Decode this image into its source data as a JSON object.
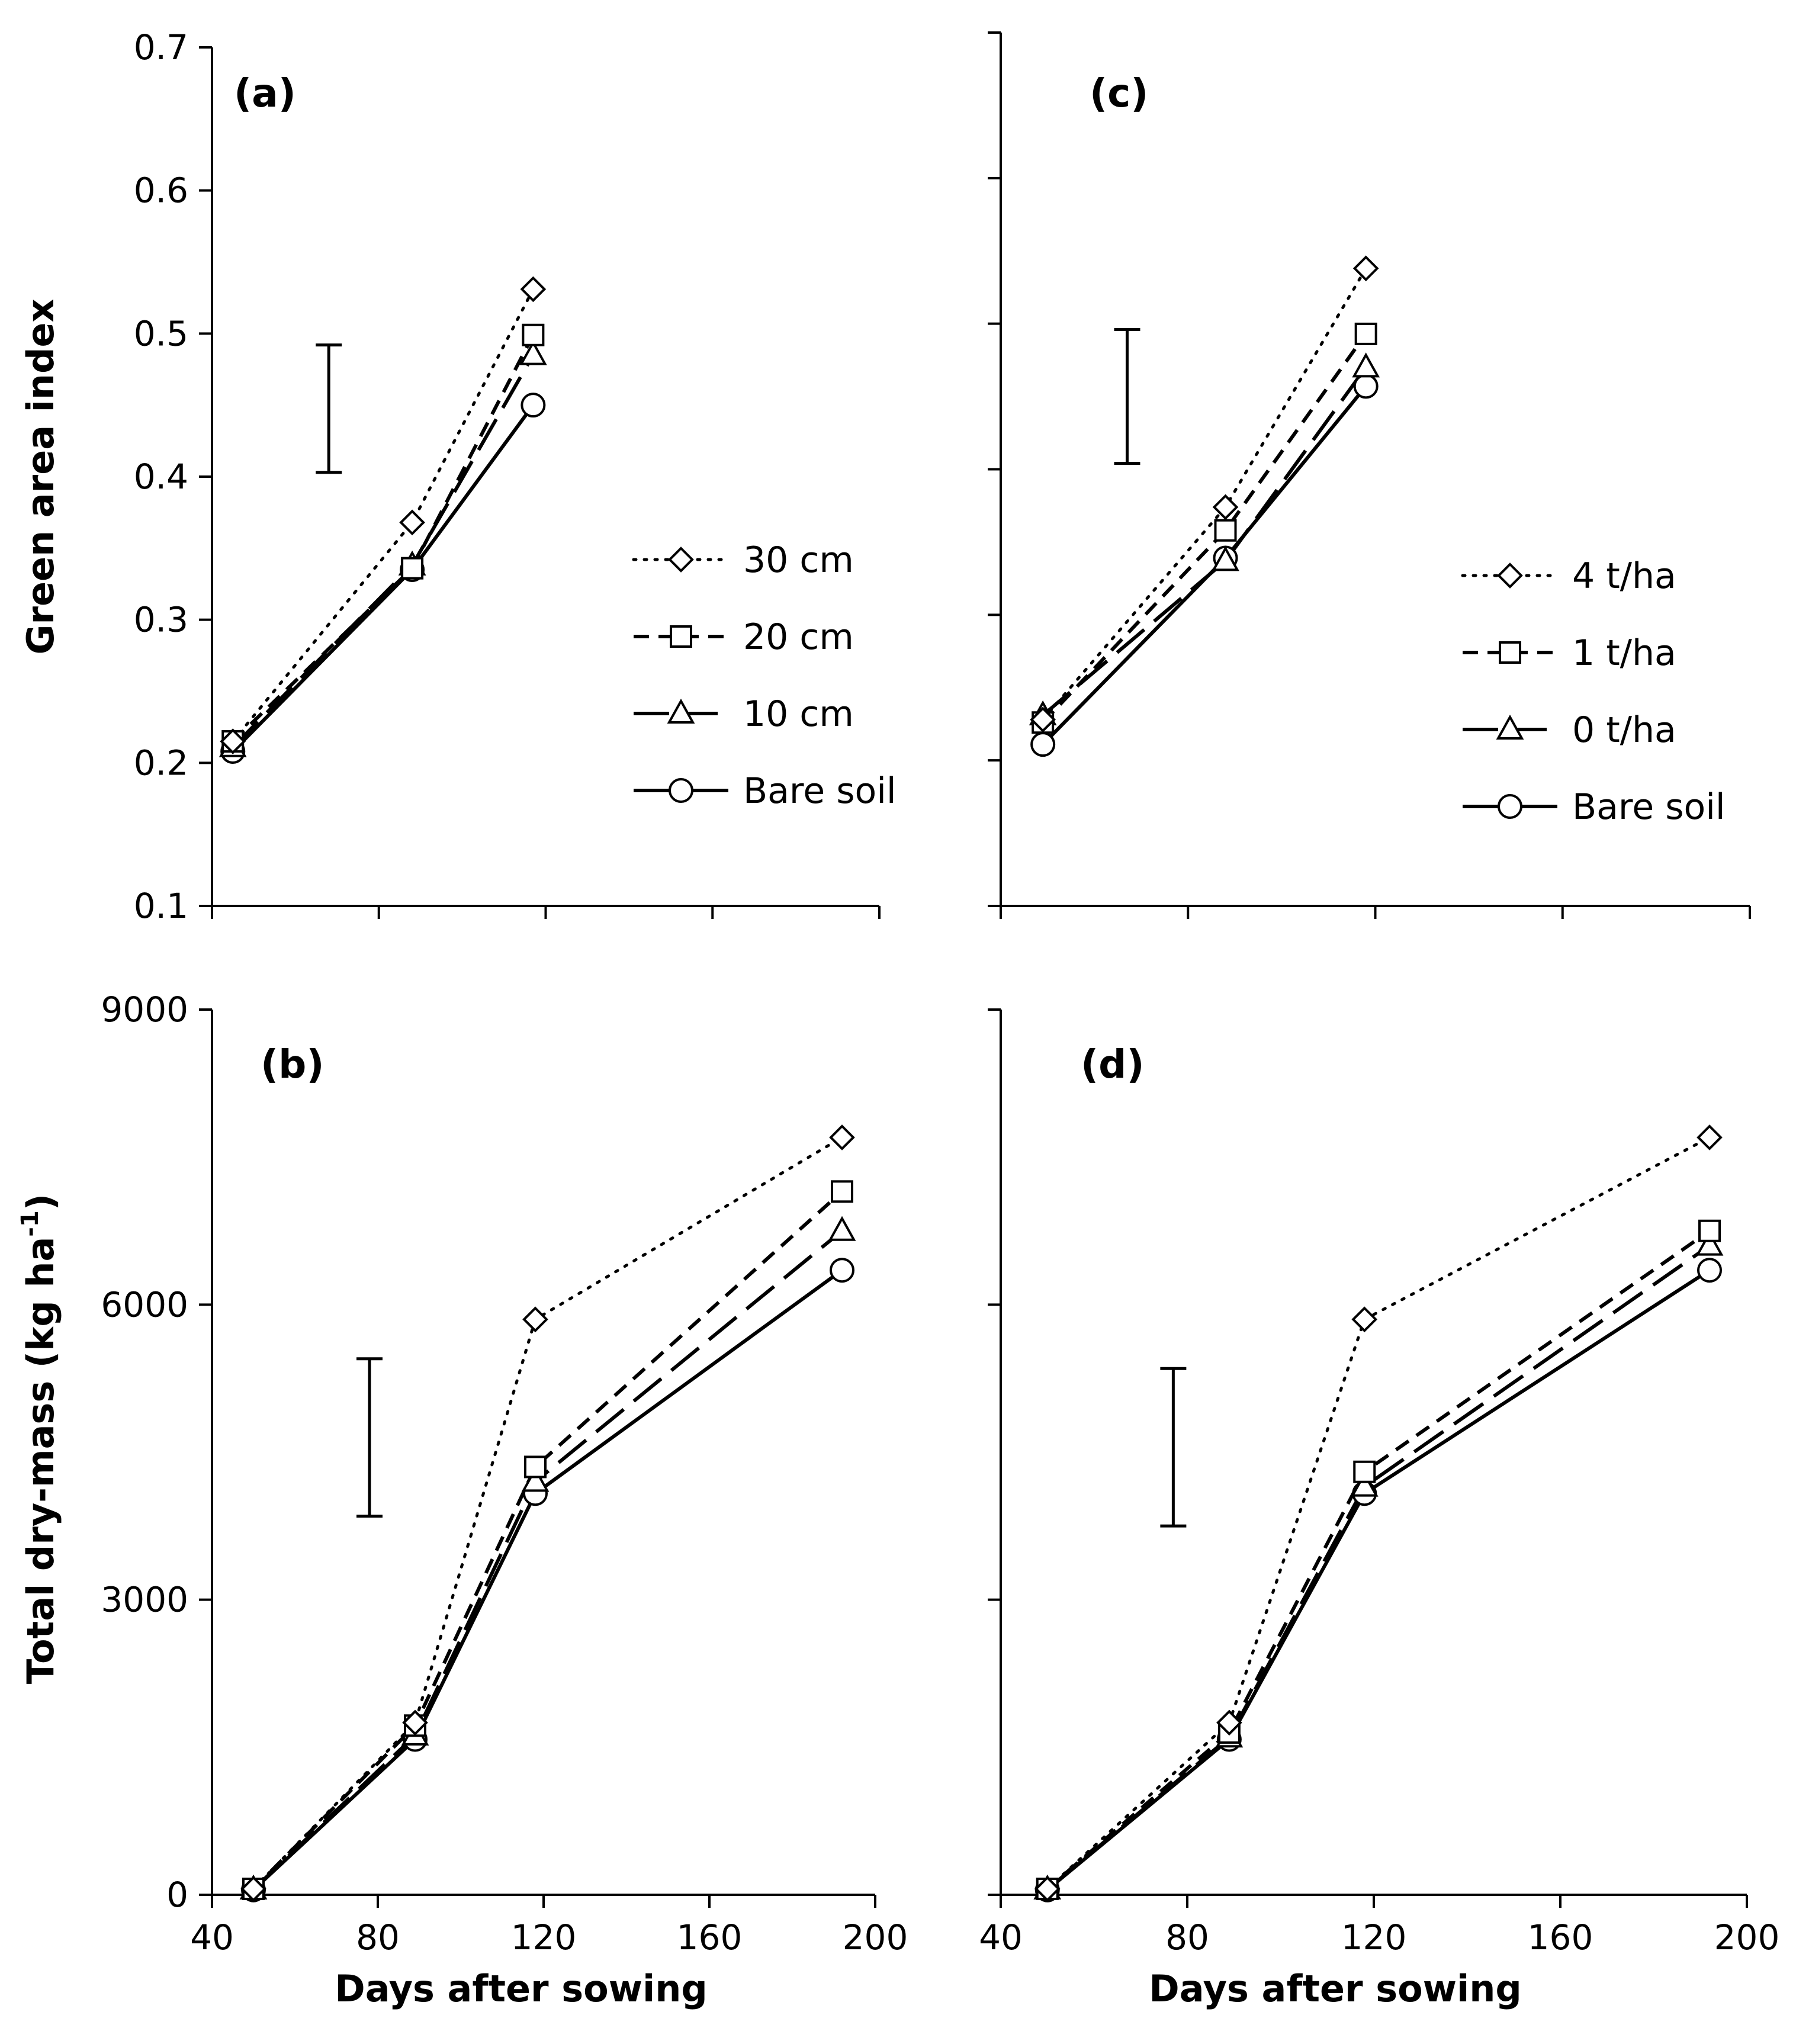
{
  "chart_data": [
    {
      "panel": "(a)",
      "type": "line",
      "ylabel": "Green area index",
      "xlabel": "",
      "ylim": [
        0.1,
        0.7
      ],
      "yticks": [
        0.1,
        0.2,
        0.3,
        0.4,
        0.5,
        0.6,
        0.7
      ],
      "ytick_labels": [
        "0.1",
        "0.2",
        "0.3",
        "0.4",
        "0.5",
        "0.6",
        "0.7"
      ],
      "xlim": [
        40,
        200
      ],
      "xticks": [
        40,
        80,
        120,
        160,
        200
      ],
      "xtick_labels": [],
      "series": [
        {
          "name": "30 cm",
          "marker": "diamond",
          "dash": "dot",
          "x": [
            45,
            88,
            117
          ],
          "values": [
            0.215,
            0.368,
            0.531
          ]
        },
        {
          "name": "20 cm",
          "marker": "square",
          "dash": "short",
          "x": [
            45,
            88,
            117
          ],
          "values": [
            0.215,
            0.336,
            0.499
          ]
        },
        {
          "name": "10 cm",
          "marker": "triangle",
          "dash": "long",
          "x": [
            45,
            88,
            117
          ],
          "values": [
            0.211,
            0.338,
            0.485
          ]
        },
        {
          "name": "Bare soil",
          "marker": "circle",
          "dash": "solid",
          "x": [
            45,
            88,
            117
          ],
          "values": [
            0.208,
            0.335,
            0.45
          ]
        }
      ],
      "error_bar": {
        "x": 68,
        "low": 0.403,
        "high": 0.492
      },
      "legend": "right"
    },
    {
      "panel": "(b)",
      "type": "line",
      "ylabel": "Total dry-mass (kg ha",
      "ylabel_sup": "-1",
      "ylabel_end": ")",
      "xlabel": "Days after sowing",
      "ylim": [
        0,
        9000
      ],
      "yticks": [
        0,
        3000,
        6000,
        9000
      ],
      "ytick_labels": [
        "0",
        "3000",
        "6000",
        "9000"
      ],
      "xlim": [
        40,
        200
      ],
      "xticks": [
        40,
        80,
        120,
        160,
        200
      ],
      "xtick_labels": [
        "40",
        "80",
        "120",
        "160",
        "200"
      ],
      "series": [
        {
          "name": "30 cm",
          "marker": "diamond",
          "dash": "dot",
          "x": [
            50,
            89,
            118,
            192
          ],
          "values": [
            60,
            1750,
            5850,
            7700
          ]
        },
        {
          "name": "20 cm",
          "marker": "square",
          "dash": "short",
          "x": [
            50,
            89,
            118,
            192
          ],
          "values": [
            60,
            1720,
            4350,
            7150
          ]
        },
        {
          "name": "10 cm",
          "marker": "triangle",
          "dash": "long",
          "x": [
            50,
            89,
            118,
            192
          ],
          "values": [
            55,
            1620,
            4200,
            6750
          ]
        },
        {
          "name": "Bare soil",
          "marker": "circle",
          "dash": "solid",
          "x": [
            50,
            89,
            118,
            192
          ],
          "values": [
            50,
            1580,
            4080,
            6350
          ]
        }
      ],
      "error_bar": {
        "x": 78,
        "low": 3850,
        "high": 5450
      }
    },
    {
      "panel": "(c)",
      "type": "line",
      "ylabel": "",
      "xlabel": "",
      "ylim": [
        0.1,
        0.7
      ],
      "yticks": [
        0.1,
        0.2,
        0.3,
        0.4,
        0.5,
        0.6,
        0.7
      ],
      "ytick_labels": [],
      "xlim": [
        40,
        200
      ],
      "xticks": [
        40,
        80,
        120,
        160,
        200
      ],
      "xtick_labels": [],
      "series": [
        {
          "name": "4 t/ha",
          "marker": "diamond",
          "dash": "dot",
          "x": [
            49,
            88,
            118
          ],
          "values": [
            0.228,
            0.374,
            0.538
          ]
        },
        {
          "name": "1 t/ha",
          "marker": "square",
          "dash": "short",
          "x": [
            49,
            88,
            118
          ],
          "values": [
            0.226,
            0.358,
            0.493
          ]
        },
        {
          "name": "0 t/ha",
          "marker": "triangle",
          "dash": "long",
          "x": [
            49,
            88,
            118
          ],
          "values": [
            0.231,
            0.337,
            0.47
          ]
        },
        {
          "name": "Bare soil",
          "marker": "circle",
          "dash": "solid",
          "x": [
            49,
            88,
            118
          ],
          "values": [
            0.211,
            0.339,
            0.457
          ]
        }
      ],
      "error_bar": {
        "x": 67,
        "low": 0.404,
        "high": 0.496
      },
      "legend": "right"
    },
    {
      "panel": "(d)",
      "type": "line",
      "ylabel": "",
      "xlabel": "Days after sowing",
      "ylim": [
        0,
        9000
      ],
      "yticks": [
        0,
        3000,
        6000,
        9000
      ],
      "ytick_labels": [],
      "xlim": [
        40,
        200
      ],
      "xticks": [
        40,
        80,
        120,
        160,
        200
      ],
      "xtick_labels": [
        "40",
        "80",
        "120",
        "160",
        "200"
      ],
      "series": [
        {
          "name": "4 t/ha",
          "marker": "diamond",
          "dash": "dot",
          "x": [
            50,
            89,
            118,
            192
          ],
          "values": [
            60,
            1750,
            5850,
            7700
          ]
        },
        {
          "name": "1 t/ha",
          "marker": "square",
          "dash": "short",
          "x": [
            50,
            89,
            118,
            192
          ],
          "values": [
            60,
            1650,
            4300,
            6750
          ]
        },
        {
          "name": "0 t/ha",
          "marker": "triangle",
          "dash": "long",
          "x": [
            50,
            89,
            118,
            192
          ],
          "values": [
            55,
            1600,
            4150,
            6600
          ]
        },
        {
          "name": "Bare soil",
          "marker": "circle",
          "dash": "solid",
          "x": [
            50,
            89,
            118,
            192
          ],
          "values": [
            50,
            1580,
            4080,
            6350
          ]
        }
      ],
      "error_bar": {
        "x": 77,
        "low": 3750,
        "high": 5350
      }
    }
  ]
}
